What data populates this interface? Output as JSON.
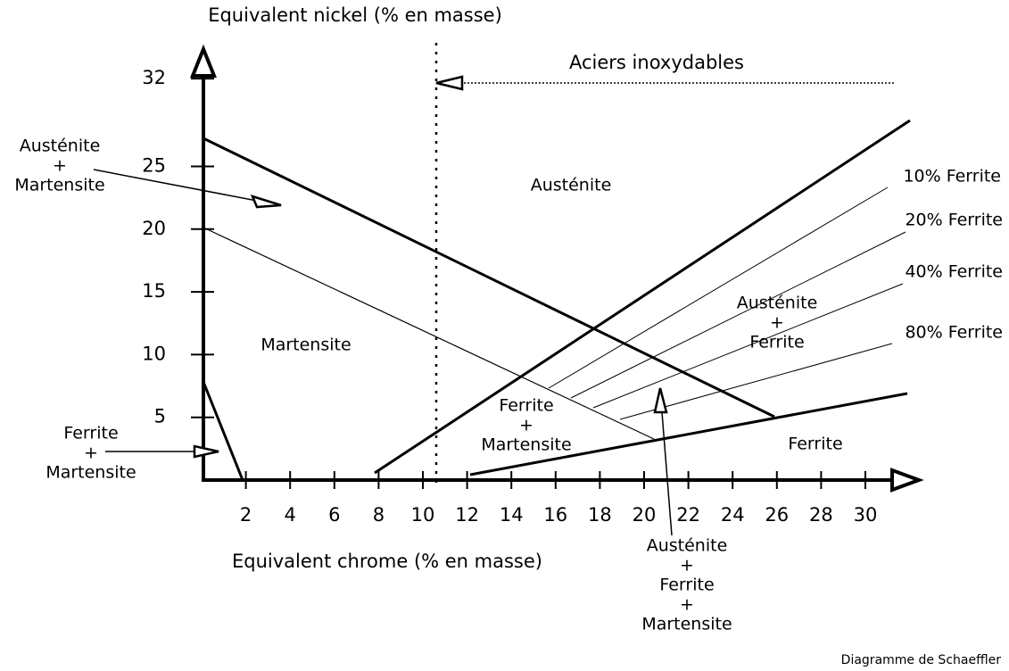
{
  "y_axis_label": "Equivalent nickel (% en masse)",
  "x_axis_label": "Equivalent chrome (% en masse)",
  "x_ticks": [
    2,
    4,
    6,
    8,
    10,
    12,
    14,
    16,
    18,
    20,
    22,
    24,
    26,
    28,
    30
  ],
  "y_ticks": [
    5,
    10,
    15,
    20,
    25,
    32
  ],
  "stainless_label": "Aciers inoxydables",
  "regions": [
    {
      "lines": [
        "Austénite",
        "+",
        "Martensite"
      ]
    },
    {
      "lines": [
        "Austénite"
      ]
    },
    {
      "lines": [
        "Martensite"
      ]
    },
    {
      "lines": [
        "Austénite",
        "+",
        "Ferrite"
      ]
    },
    {
      "lines": [
        "Ferrite",
        "+",
        "Martensite"
      ]
    },
    {
      "lines": [
        "Ferrite"
      ]
    },
    {
      "lines": [
        "Ferrite",
        "+",
        "Martensite"
      ]
    },
    {
      "lines": [
        "Austénite",
        "+",
        "Ferrite",
        "+",
        "Martensite"
      ]
    }
  ],
  "ferrite_lines": [
    "10% Ferrite",
    "20% Ferrite",
    "40% Ferrite",
    "80% Ferrite"
  ],
  "caption": "Diagramme de Schaeffler"
}
